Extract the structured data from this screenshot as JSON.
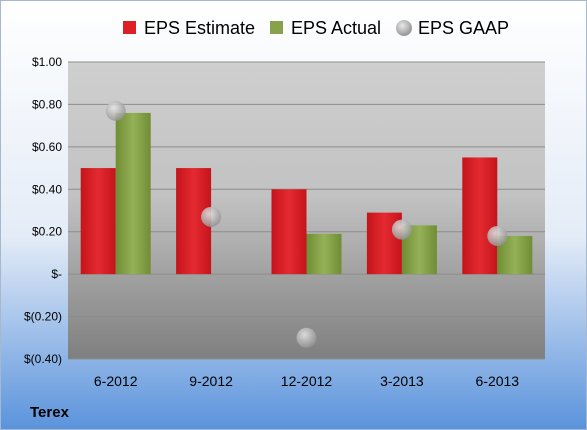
{
  "chart_data": {
    "type": "bar",
    "categories": [
      "6-2012",
      "9-2012",
      "12-2012",
      "3-2013",
      "6-2013"
    ],
    "series": [
      {
        "name": "EPS Estimate",
        "kind": "bar",
        "color": "#dd1f26",
        "values": [
          0.5,
          0.5,
          0.4,
          0.29,
          0.55
        ]
      },
      {
        "name": "EPS Actual",
        "kind": "bar",
        "color": "#87a24a",
        "values": [
          0.76,
          null,
          0.19,
          0.23,
          0.18
        ]
      },
      {
        "name": "EPS GAAP",
        "kind": "point",
        "color": "#b5b5b5",
        "values": [
          0.77,
          0.27,
          -0.3,
          0.21,
          0.18
        ]
      }
    ],
    "ylim": [
      -0.4,
      1.0
    ],
    "yticks": [
      1.0,
      0.8,
      0.6,
      0.4,
      0.2,
      0,
      -0.2,
      -0.4
    ],
    "ytick_labels": [
      "$1.00",
      "$0.80",
      "$0.60",
      "$0.40",
      "$0.20",
      "$-",
      "$(0.20)",
      "$(0.40)"
    ],
    "legend_position": "top",
    "grid": true
  },
  "company_label": "Terex",
  "colors": {
    "background_top": "#ffffff",
    "background_bottom": "#5a93dc",
    "plot_top": "#c8c8c8",
    "plot_bottom": "#8a8a8a"
  }
}
